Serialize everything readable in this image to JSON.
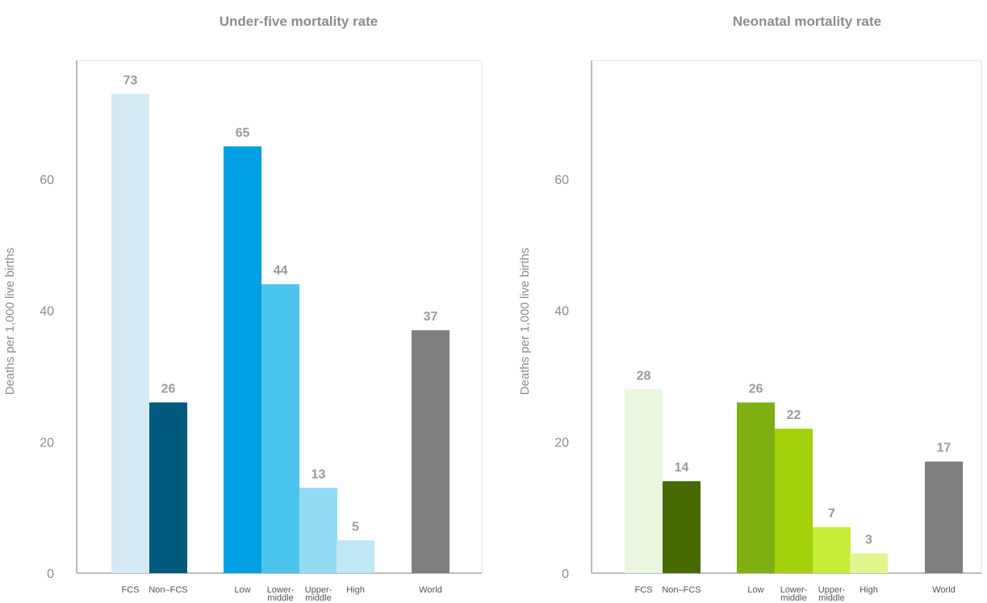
{
  "chart_data": [
    {
      "type": "bar",
      "title": "Under-five mortality rate",
      "ylabel": "Deaths per 1,000 live births",
      "xlabel": "",
      "ylim": [
        0,
        73
      ],
      "yticks": [
        "0",
        "20",
        "40",
        "60"
      ],
      "grid": false,
      "categories": [
        [
          "FCS"
        ],
        [
          "Non–FCS"
        ],
        [
          "Low"
        ],
        [
          "Lower-",
          "middle"
        ],
        [
          "Upper-",
          "middle"
        ],
        [
          "High"
        ],
        [
          "World"
        ]
      ],
      "values": [
        73,
        26,
        65,
        44,
        13,
        5,
        37
      ],
      "data_labels": [
        "73",
        "26",
        "65",
        "44",
        "13",
        "5",
        "37"
      ],
      "colors": [
        "#d5eaf5",
        "#005a7e",
        "#009fe3",
        "#4bc5ee",
        "#93dcf4",
        "#bfe7f6",
        "#7f7f7f"
      ]
    },
    {
      "type": "bar",
      "title": "Neonatal mortality rate",
      "ylabel": "Deaths per 1,000 live births",
      "xlabel": "",
      "ylim": [
        0,
        73
      ],
      "yticks": [
        "0",
        "20",
        "40",
        "60"
      ],
      "grid": false,
      "categories": [
        [
          "FCS"
        ],
        [
          "Non–FCS"
        ],
        [
          "Low"
        ],
        [
          "Lower-",
          "middle"
        ],
        [
          "Upper-",
          "middle"
        ],
        [
          "High"
        ],
        [
          "World"
        ]
      ],
      "values": [
        28,
        14,
        26,
        22,
        7,
        3,
        17
      ],
      "data_labels": [
        "28",
        "14",
        "26",
        "22",
        "7",
        "3",
        "17"
      ],
      "colors": [
        "#ebf6df",
        "#476b00",
        "#7fb012",
        "#a3d10b",
        "#c6ec37",
        "#e1f68f",
        "#7f7f7f"
      ]
    }
  ]
}
